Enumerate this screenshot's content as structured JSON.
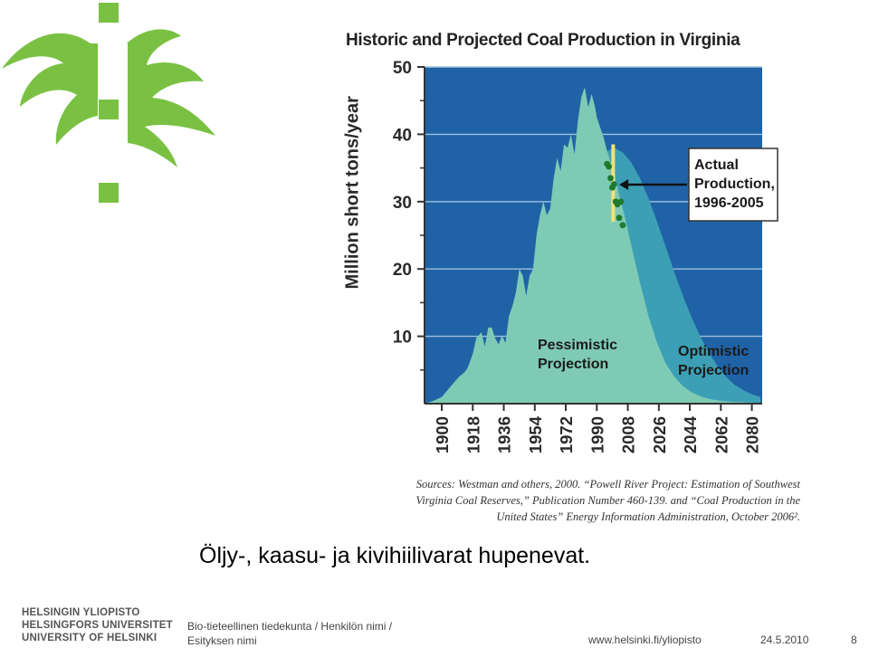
{
  "logo": {
    "color": "#7ac143"
  },
  "chart_data": {
    "type": "area",
    "title": "Historic and Projected Coal Production in Virginia",
    "ylabel": "Million short tons/year",
    "xlabel": "",
    "ylim": [
      0,
      50
    ],
    "yticks": [
      10,
      20,
      30,
      40,
      50
    ],
    "xlim": [
      1890,
      2086
    ],
    "xticks": [
      1900,
      1918,
      1936,
      1954,
      1972,
      1990,
      2008,
      2026,
      2044,
      2062,
      2080
    ],
    "grid": true,
    "background_color": "#1f63a6",
    "series": [
      {
        "name": "Optimistic Projection",
        "color": "#3d9fb5",
        "x": [
          1996,
          2000,
          2005,
          2010,
          2015,
          2020,
          2025,
          2030,
          2035,
          2040,
          2045,
          2050,
          2055,
          2060,
          2065,
          2070,
          2075,
          2080,
          2085
        ],
        "y": [
          37.5,
          38,
          37.3,
          35.8,
          33.5,
          30.5,
          27,
          23.3,
          19.5,
          16,
          12.8,
          10,
          7.6,
          5.6,
          4.0,
          2.8,
          2.0,
          1.4,
          1.0
        ]
      },
      {
        "name": "Pessimistic Projection",
        "color": "#7fcab4",
        "x": [
          1890,
          1895,
          1900,
          1905,
          1910,
          1913,
          1915,
          1918,
          1920,
          1923,
          1925,
          1927,
          1929,
          1931,
          1933,
          1935,
          1937,
          1939,
          1941,
          1943,
          1945,
          1947,
          1949,
          1951,
          1953,
          1955,
          1957,
          1959,
          1961,
          1963,
          1965,
          1967,
          1969,
          1971,
          1973,
          1975,
          1977,
          1979,
          1981,
          1983,
          1985,
          1987,
          1989,
          1990,
          1992,
          1994,
          1996,
          2000,
          2003,
          2006,
          2010,
          2015,
          2020,
          2025,
          2030,
          2035,
          2040,
          2045,
          2050,
          2055,
          2060,
          2065,
          2070,
          2075,
          2080,
          2085
        ],
        "y": [
          0,
          0.4,
          1.0,
          2.5,
          4.0,
          4.6,
          5.3,
          7.4,
          9.7,
          10.6,
          8.5,
          11.3,
          11.3,
          9.7,
          8.8,
          10.1,
          9.0,
          13.0,
          14.5,
          16.5,
          20.0,
          19.0,
          16.0,
          19.0,
          20.0,
          25.0,
          28.0,
          30.0,
          28.0,
          29.0,
          33.5,
          36.5,
          34.5,
          38.5,
          38.0,
          40.0,
          37.0,
          42.0,
          45.5,
          47.0,
          44.0,
          46.0,
          44.0,
          42.5,
          41.0,
          39.5,
          37.5,
          34.2,
          31.0,
          28.0,
          23.5,
          18.0,
          13.0,
          9.0,
          6.0,
          4.0,
          2.6,
          1.7,
          1.1,
          0.7,
          0.5,
          0.35,
          0.25,
          0.2,
          0.15,
          0.1
        ]
      },
      {
        "name": "Actual Production, 1996-2005",
        "color": "#1e7a2c",
        "x": [
          1996,
          1997,
          1998,
          1999,
          2000,
          2001,
          2002,
          2003,
          2004,
          2005
        ],
        "y": [
          35.6,
          35.2,
          33.5,
          32.1,
          32.6,
          30.0,
          29.6,
          27.6,
          30.0,
          26.5
        ]
      }
    ],
    "annotations": [
      {
        "lines": [
          "Actual",
          "Production,",
          "1996-2005"
        ],
        "boxed": true
      },
      {
        "lines": [
          "Pessimistic",
          "Projection"
        ]
      },
      {
        "lines": [
          "Optimistic",
          "Projection"
        ]
      }
    ],
    "sources": [
      "Sources: Westman and others, 2000. “Powell River Project: Estimation of Southwest",
      "Virginia Coal Reserves,” Publication Number 460-139. and  “Coal Production in the",
      "United States” Energy Information Administration, October 2006²."
    ]
  },
  "slide": {
    "caption": "Öljy-, kaasu- ja kivihiilivarat hupenevat."
  },
  "footer": {
    "university_names": [
      "HELSINGIN YLIOPISTO",
      "HELSINGFORS UNIVERSITET",
      "UNIVERSITY OF HELSINKI"
    ],
    "department": "Bio-tieteellinen tiedekunta / Henkilön nimi /",
    "presentation": "Esityksen nimi",
    "url": "www.helsinki.fi/yliopisto",
    "date": "24.5.2010",
    "page": "8"
  }
}
